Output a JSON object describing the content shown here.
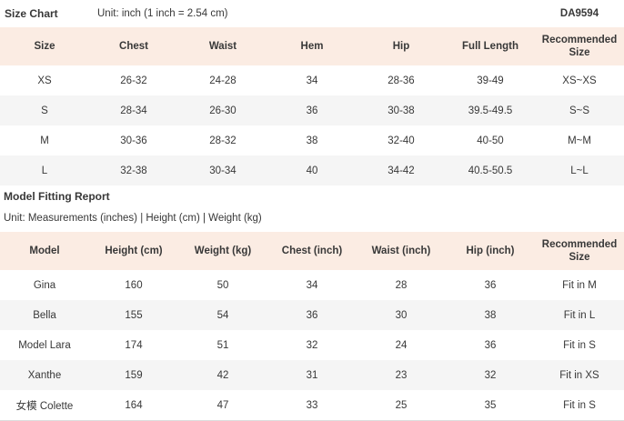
{
  "page": {
    "title": "Size Chart",
    "unit_note": "Unit: inch (1 inch = 2.54 cm)",
    "product_code": "DA9594"
  },
  "size_chart": {
    "columns": [
      "Size",
      "Chest",
      "Waist",
      "Hem",
      "Hip",
      "Full Length",
      "Recommended Size"
    ],
    "rows": [
      [
        "XS",
        "26-32",
        "24-28",
        "34",
        "28-36",
        "39-49",
        "XS~XS"
      ],
      [
        "S",
        "28-34",
        "26-30",
        "36",
        "30-38",
        "39.5-49.5",
        "S~S"
      ],
      [
        "M",
        "30-36",
        "28-32",
        "38",
        "32-40",
        "40-50",
        "M~M"
      ],
      [
        "L",
        "32-38",
        "30-34",
        "40",
        "34-42",
        "40.5-50.5",
        "L~L"
      ]
    ]
  },
  "fitting_report": {
    "title": "Model Fitting Report",
    "unit_note": "Unit: Measurements (inches) | Height (cm) | Weight (kg)",
    "columns": [
      "Model",
      "Height (cm)",
      "Weight (kg)",
      "Chest (inch)",
      "Waist (inch)",
      "Hip (inch)",
      "Recommended Size"
    ],
    "rows": [
      [
        "Gina",
        "160",
        "50",
        "34",
        "28",
        "36",
        "Fit in M"
      ],
      [
        "Bella",
        "155",
        "54",
        "36",
        "30",
        "38",
        "Fit in L"
      ],
      [
        "Model Lara",
        "174",
        "51",
        "32",
        "24",
        "36",
        "Fit in S"
      ],
      [
        "Xanthe",
        "159",
        "42",
        "31",
        "23",
        "32",
        "Fit in XS"
      ],
      [
        "女模 Colette",
        "164",
        "47",
        "33",
        "25",
        "35",
        "Fit in S"
      ]
    ]
  },
  "colors": {
    "header_bg": "#fbece3",
    "alt_row_bg": "#f5f5f5",
    "text": "#383838"
  }
}
